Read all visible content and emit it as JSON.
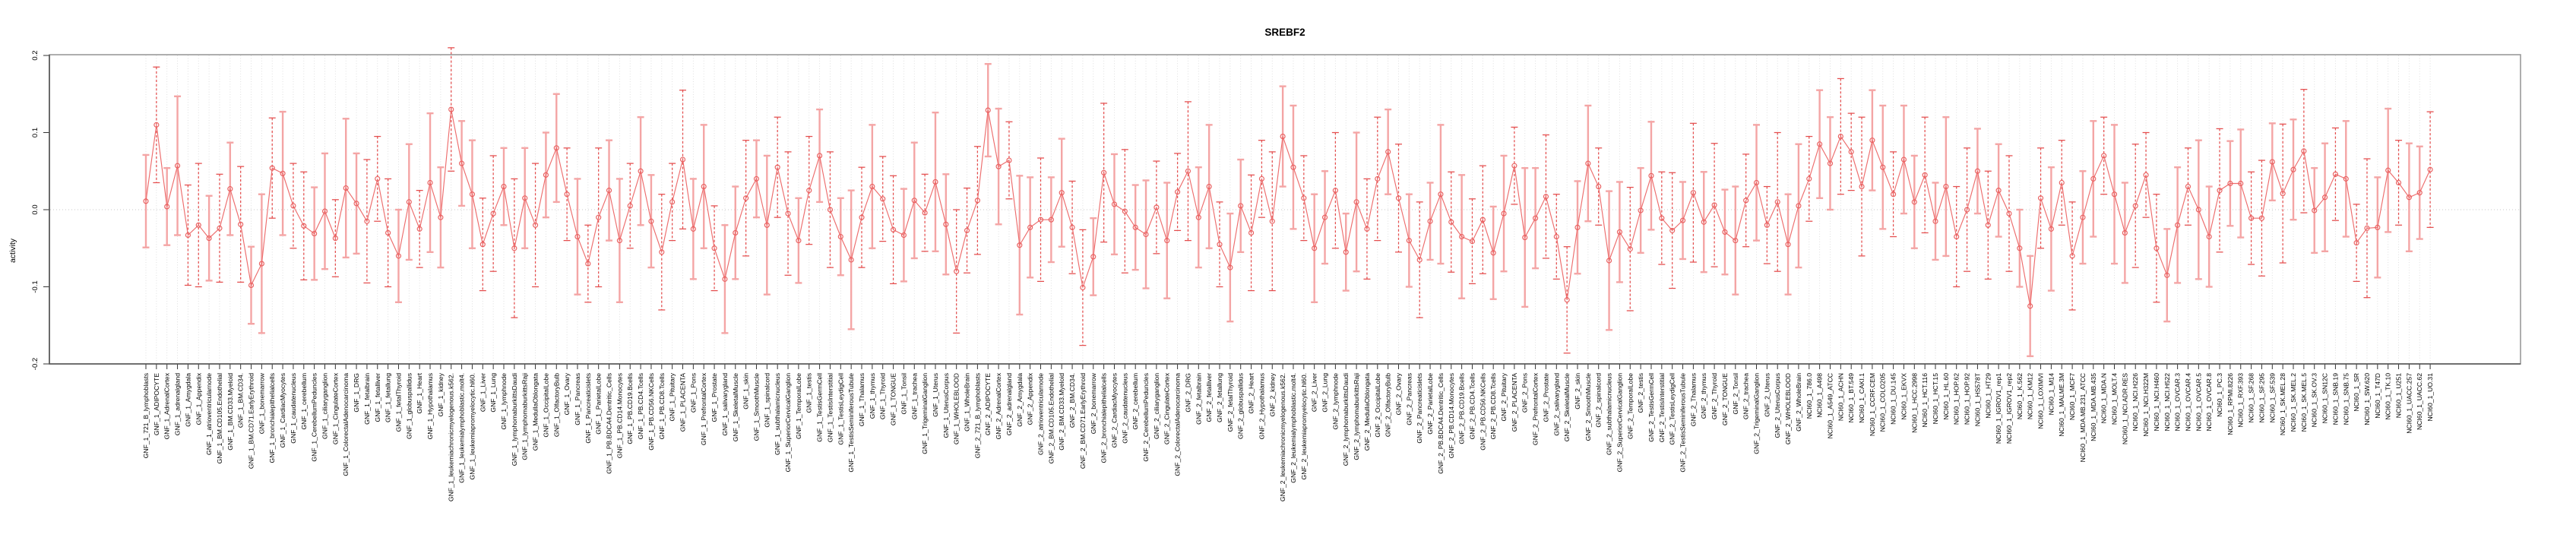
{
  "chart_data": {
    "type": "line",
    "error_bars": true,
    "title": "SREBF2",
    "xlabel": "",
    "ylabel": "activity",
    "ylim": [
      -0.2,
      0.2
    ],
    "ytick_labels": [
      "0.2",
      "0.1",
      "0.0",
      "-0.1",
      "-0.2"
    ],
    "ytick_values": [
      0.2,
      0.1,
      0.0,
      -0.1,
      -0.2
    ],
    "grid": "vertical dotted gridline at every category; dotted horizontal line at 0",
    "legend_position": "none",
    "colors": {
      "point": "#e96060",
      "line": "#ed6d6d",
      "errorbar_light": "#f4a5a5",
      "errorbar_dark": "#e44d4d",
      "grid": "#dcdcdc",
      "frame": "#9a9a9a"
    },
    "categories": [
      "GNF_1_721_B_lymphoblasts",
      "GNF_1_ADIPOCYTE",
      "GNF_1_AdrenalCortex",
      "GNF_1_adrenalgland",
      "GNF_1_Amygdala",
      "GNF_1_Appendix",
      "GNF_1_atrioventricularnode",
      "GNF_1_BM.CD105.Endothelial",
      "GNF_1_BM.CD33.Myeloid",
      "GNF_1_BM.CD34.",
      "GNF_1_BM.CD71.EarlyErythroid",
      "GNF_1_bonemarrow",
      "GNF_1_bronchialepithelialcells",
      "GNF_1_CardiacMyocytes",
      "GNF_1_caudatenucleus",
      "GNF_1_cerebellum",
      "GNF_1_CerebellumPeduncles",
      "GNF_1_ciliaryganglion",
      "GNF_1_CingulateCortex",
      "GNF_1_ColorectalAdenocarcinoma",
      "GNF_1_DRG",
      "GNF_1_fetalbrain",
      "GNF_1_fetalliver",
      "GNF_1_fetallung",
      "GNF_1_fetalThyroid",
      "GNF_1_globuspallidus",
      "GNF_1_Heart",
      "GNF_1_Hypothalamus",
      "GNF_1_kidney",
      "GNF_1_leukemiachronicmyelogenous.k562.",
      "GNF_1_leukemialymphoblastic.molt4.",
      "GNF_1_leukemiapromyelocytic.hl60.",
      "GNF_1_Liver",
      "GNF_1_Lung",
      "GNF_1_lymphnode",
      "GNF_1_lymphomaburkittsDaudi",
      "GNF_1_lymphomaburkittsRaji",
      "GNF_1_MedullaOblongata",
      "GNF_1_OccipitalLobe",
      "GNF_1_OlfactoryBulb",
      "GNF_1_Ovary",
      "GNF_1_Pancreas",
      "GNF_1_Pancreaticislets",
      "GNF_1_ParietalLobe",
      "GNF_1_PB.BDCA4.Dentritic_Cells",
      "GNF_1_PB.CD14.Monocytes",
      "GNF_1_PB.CD19.Bcells",
      "GNF_1_PB.CD4.Tcells",
      "GNF_1_PB.CD56.NKCells",
      "GNF_1_PB.CD8.Tcells",
      "GNF_1_Pituitary",
      "GNF_1_PLACENTA",
      "GNF_1_Pons",
      "GNF_1_PrefrontalCortex",
      "GNF_1_Prostate",
      "GNF_1_salivarygland",
      "GNF_1_SkeletalMuscle",
      "GNF_1_skin",
      "GNF_1_SmoothMuscle",
      "GNF_1_spinalcord",
      "GNF_1_subthalamicnucleus",
      "GNF_1_SuperiorCervicalGanglion",
      "GNF_1_TemporalLobe",
      "GNF_1_testis",
      "GNF_1_TestisGermCell",
      "GNF_1_TestisInterstitial",
      "GNF_1_TestisLeydigCell",
      "GNF_1_TestisSeminiferousTubule",
      "GNF_1_Thalamus",
      "GNF_1_thymus",
      "GNF_1_Thyroid",
      "GNF_1_TONGUE",
      "GNF_1_Tonsil",
      "GNF_1_trachea",
      "GNF_1_TrigeminalGanglion",
      "GNF_1_Uterus",
      "GNF_1_UterusCorpus",
      "GNF_1_WHOLEBLOOD",
      "GNF_1_WholeBrain",
      "GNF_2_721_B_lymphoblasts",
      "GNF_2_ADIPOCYTE",
      "GNF_2_AdrenalCortex",
      "GNF_2_adrenalgland",
      "GNF_2_Amygdala",
      "GNF_2_Appendix",
      "GNF_2_atrioventricularnode",
      "GNF_2_BM.CD105.Endothelial",
      "GNF_2_BM.CD33.Myeloid",
      "GNF_2_BM.CD34.",
      "GNF_2_BM.CD71.EarlyErythroid",
      "GNF_2_bonemarrow",
      "GNF_2_bronchialepithelialcells",
      "GNF_2_CardiacMyocytes",
      "GNF_2_caudatenucleus",
      "GNF_2_cerebellum",
      "GNF_2_CerebellumPeduncles",
      "GNF_2_ciliaryganglion",
      "GNF_2_CingulateCortex",
      "GNF_2_ColorectalAdenocarcinoma",
      "GNF_2_DRG",
      "GNF_2_fetalbrain",
      "GNF_2_fetalliver",
      "GNF_2_fetallung",
      "GNF_2_fetalThyroid",
      "GNF_2_globuspallidus",
      "GNF_2_Heart",
      "GNF_2_Hypothalamus",
      "GNF_2_kidney",
      "GNF_2_leukemiachronicmyelogenous.k562.",
      "GNF_2_leukemialymphoblastic.molt4.",
      "GNF_2_leukemiapromyelocytic.hl60.",
      "GNF_2_Liver",
      "GNF_2_Lung",
      "GNF_2_lymphnode",
      "GNF_2_lymphomaburkittsDaudi",
      "GNF_2_lymphomaburkittsRaji",
      "GNF_2_MedullaOblongata",
      "GNF_2_OccipitalLobe",
      "GNF_2_OlfactoryBulb",
      "GNF_2_Ovary",
      "GNF_2_Pancreas",
      "GNF_2_Pancreaticislets",
      "GNF_2_ParietalLobe",
      "GNF_2_PB.BDCA4.Dentritic_Cells",
      "GNF_2_PB.CD14.Monocytes",
      "GNF_2_PB.CD19.Bcells",
      "GNF_2_PB.CD4.Tcells",
      "GNF_2_PB.CD56.NKCells",
      "GNF_2_PB.CD8.Tcells",
      "GNF_2_Pituitary",
      "GNF_2_PLACENTA",
      "GNF_2_Pons",
      "GNF_2_PrefrontalCortex",
      "GNF_2_Prostate",
      "GNF_2_salivarygland",
      "GNF_2_SkeletalMuscle",
      "GNF_2_skin",
      "GNF_2_SmoothMuscle",
      "GNF_2_spinalcord",
      "GNF_2_subthalamicnucleus",
      "GNF_2_SuperiorCervicalGanglion",
      "GNF_2_TemporalLobe",
      "GNF_2_testis",
      "GNF_2_TestisGermCell",
      "GNF_2_TestisInterstitial",
      "GNF_2_TestisLeydigCell",
      "GNF_2_TestisSeminiferousTubule",
      "GNF_2_Thalamus",
      "GNF_2_thymus",
      "GNF_2_Thyroid",
      "GNF_2_TONGUE",
      "GNF_2_Tonsil",
      "GNF_2_trachea",
      "GNF_2_TrigeminalGanglion",
      "GNF_2_Uterus",
      "GNF_2_UterusCorpus",
      "GNF_2_WHOLEBLOOD",
      "GNF_2_WholeBrain",
      "NCI60_1_786.0",
      "NCI60_1_A498",
      "NCI60_1_A549_ATCC",
      "NCI60_1_ACHN",
      "NCI60_1_BT.549",
      "NCI60_1_CAKI.1",
      "NCI60_1_CCRF.CEM",
      "NCI60_1_COLO205",
      "NCI60_1_DU.145",
      "NCI60_1_EKVX",
      "NCI60_1_HCC.2998",
      "NCI60_1_HCT.116",
      "NCI60_1_HCT.15",
      "NCI60_1_HL.60",
      "NCI60_1_HOP.62",
      "NCI60_1_HOP.92",
      "NCI60_1_HS578T",
      "NCI60_1_HT29",
      "NCI60_1_IGROV1_rep1",
      "NCI60_1_IGROV1_rep2",
      "NCI60_1_K.562",
      "NCI60_1_KM12",
      "NCI60_1_LOXIMVI",
      "NCI60_1_M14",
      "NCI60_1_MALME.3M",
      "NCI60_1_MCF7",
      "NCI60_1_MDA.MB.231_ATCC",
      "NCI60_1_MDA.MB.435",
      "NCI60_1_MDA.N",
      "NCI60_1_MOLT.4",
      "NCI60_1_NCI.ADR.RES",
      "NCI60_1_NCI.H226",
      "NCI60_1_NCI.H322M",
      "NCI60_1_NCI.H460",
      "NCI60_1_NCI.H522",
      "NCI60_1_OVCAR.3",
      "NCI60_1_OVCAR.4",
      "NCI60_1_OVCAR.5",
      "NCI60_1_OVCAR.8",
      "NCI60_1_PC.3",
      "NCI60_1_RPMI.8226",
      "NCI60_1_RXF.393",
      "NCI60_1_SF.268",
      "NCI60_1_SF.295",
      "NCI60_1_SF.539",
      "NCI60_1_SK.MEL.28",
      "NCI60_1_SK.MEL.2",
      "NCI60_1_SK.MEL.5",
      "NCI60_1_SK.OV.3",
      "NCI60_1_SN12C",
      "NCI60_1_SNB.19",
      "NCI60_1_SNB.75",
      "NCI60_1_SR",
      "NCI60_1_SW.620",
      "NCI60_1_T47D",
      "NCI60_1_TK.10",
      "NCI60_1_U251",
      "NCI60_1_UACC.257",
      "NCI60_1_UACC.62",
      "NCI60_1_UO.31"
    ],
    "values": [
      0.011,
      0.11,
      0.004,
      0.057,
      -0.033,
      -0.02,
      -0.037,
      -0.024,
      0.027,
      -0.019,
      -0.098,
      -0.07,
      0.054,
      0.047,
      0.005,
      -0.021,
      -0.031,
      -0.002,
      -0.037,
      0.028,
      0.008,
      -0.015,
      0.04,
      -0.03,
      -0.06,
      0.01,
      -0.025,
      0.035,
      -0.01,
      0.13,
      0.06,
      0.02,
      -0.045,
      -0.005,
      0.03,
      -0.05,
      0.015,
      -0.02,
      0.045,
      0.08,
      0.02,
      -0.035,
      -0.07,
      -0.01,
      0.025,
      -0.04,
      0.005,
      0.05,
      -0.015,
      -0.055,
      0.01,
      0.065,
      -0.025,
      0.03,
      -0.05,
      -0.09,
      -0.03,
      0.015,
      0.04,
      -0.02,
      0.055,
      -0.005,
      -0.04,
      0.025,
      0.07,
      0.0,
      -0.035,
      -0.065,
      -0.01,
      0.03,
      0.014,
      -0.026,
      -0.033,
      0.012,
      -0.004,
      0.036,
      -0.019,
      -0.08,
      -0.027,
      0.012,
      0.129,
      0.056,
      0.064,
      -0.046,
      -0.023,
      -0.013,
      -0.013,
      0.022,
      -0.023,
      -0.101,
      -0.061,
      0.048,
      0.007,
      -0.002,
      -0.023,
      -0.032,
      0.003,
      -0.04,
      0.023,
      0.05,
      -0.01,
      0.03,
      -0.045,
      -0.075,
      0.005,
      -0.03,
      0.04,
      -0.015,
      0.095,
      0.055,
      0.015,
      -0.05,
      -0.01,
      0.025,
      -0.055,
      0.01,
      -0.025,
      0.04,
      0.075,
      0.015,
      -0.04,
      -0.065,
      -0.015,
      0.02,
      -0.016,
      -0.035,
      -0.041,
      -0.013,
      -0.056,
      -0.005,
      0.057,
      -0.036,
      -0.011,
      0.017,
      -0.035,
      -0.117,
      -0.023,
      0.06,
      0.03,
      -0.066,
      -0.029,
      -0.051,
      -0.001,
      0.044,
      -0.011,
      -0.027,
      -0.014,
      0.022,
      -0.016,
      0.006,
      -0.029,
      -0.04,
      0.012,
      0.035,
      -0.02,
      0.01,
      -0.045,
      0.005,
      0.04,
      0.085,
      0.06,
      0.095,
      0.075,
      0.03,
      0.09,
      0.055,
      0.02,
      0.065,
      0.01,
      0.045,
      -0.015,
      0.03,
      -0.035,
      0.0,
      0.05,
      -0.02,
      0.025,
      -0.005,
      -0.05,
      -0.125,
      0.015,
      -0.025,
      0.035,
      -0.06,
      -0.01,
      0.04,
      0.07,
      0.02,
      -0.03,
      0.005,
      0.045,
      -0.05,
      -0.085,
      -0.02,
      0.03,
      0.0,
      -0.035,
      0.025,
      0.034,
      0.034,
      -0.011,
      -0.011,
      0.062,
      0.021,
      0.052,
      0.076,
      -0.001,
      0.016,
      0.046,
      0.04,
      -0.043,
      -0.024,
      -0.023,
      0.051,
      0.035,
      0.016,
      0.022,
      0.052
    ],
    "errors": [
      0.06,
      0.075,
      0.05,
      0.09,
      0.065,
      0.08,
      0.055,
      0.07,
      0.06,
      0.075,
      0.05,
      0.09,
      0.065,
      0.08,
      0.055,
      0.07,
      0.06,
      0.075,
      0.05,
      0.09,
      0.065,
      0.08,
      0.055,
      0.07,
      0.06,
      0.075,
      0.05,
      0.09,
      0.065,
      0.08,
      0.055,
      0.07,
      0.06,
      0.075,
      0.05,
      0.09,
      0.065,
      0.08,
      0.055,
      0.07,
      0.06,
      0.075,
      0.05,
      0.09,
      0.065,
      0.08,
      0.055,
      0.07,
      0.06,
      0.075,
      0.05,
      0.09,
      0.065,
      0.08,
      0.055,
      0.07,
      0.06,
      0.075,
      0.05,
      0.09,
      0.065,
      0.08,
      0.055,
      0.07,
      0.06,
      0.075,
      0.05,
      0.09,
      0.065,
      0.08,
      0.055,
      0.07,
      0.06,
      0.075,
      0.05,
      0.09,
      0.065,
      0.08,
      0.055,
      0.07,
      0.06,
      0.075,
      0.05,
      0.09,
      0.065,
      0.08,
      0.055,
      0.07,
      0.06,
      0.075,
      0.05,
      0.09,
      0.065,
      0.08,
      0.055,
      0.07,
      0.06,
      0.075,
      0.05,
      0.09,
      0.065,
      0.08,
      0.055,
      0.07,
      0.06,
      0.075,
      0.05,
      0.09,
      0.065,
      0.08,
      0.055,
      0.07,
      0.06,
      0.075,
      0.05,
      0.09,
      0.065,
      0.08,
      0.055,
      0.07,
      0.06,
      0.075,
      0.05,
      0.09,
      0.065,
      0.08,
      0.055,
      0.07,
      0.06,
      0.075,
      0.05,
      0.09,
      0.065,
      0.08,
      0.055,
      0.069,
      0.06,
      0.075,
      0.05,
      0.09,
      0.065,
      0.08,
      0.055,
      0.07,
      0.06,
      0.075,
      0.05,
      0.09,
      0.065,
      0.08,
      0.055,
      0.07,
      0.06,
      0.075,
      0.05,
      0.09,
      0.065,
      0.08,
      0.055,
      0.07,
      0.06,
      0.075,
      0.05,
      0.09,
      0.065,
      0.08,
      0.055,
      0.07,
      0.06,
      0.075,
      0.05,
      0.09,
      0.065,
      0.08,
      0.055,
      0.07,
      0.06,
      0.075,
      0.05,
      0.065,
      0.065,
      0.08,
      0.055,
      0.07,
      0.06,
      0.075,
      0.05,
      0.09,
      0.065,
      0.08,
      0.055,
      0.07,
      0.06,
      0.075,
      0.05,
      0.09,
      0.065,
      0.08,
      0.055,
      0.07,
      0.06,
      0.075,
      0.05,
      0.09,
      0.065,
      0.08,
      0.055,
      0.07,
      0.06,
      0.075,
      0.05,
      0.09,
      0.065,
      0.08,
      0.055,
      0.07,
      0.06,
      0.075
    ],
    "bar_styles": "sdssddsdsdssdsddssdssdddssdssdssddsdsdssdsddssdssdddssdssdssddsdsdssdsddssdssdddssdssdssddsdsdssdsddssdssdddssdssdssddsdsdssdsddssdssdddssdssdssddsdsdssdsddssdssdddssdssdssddsdsdssdsddssdssdddssdssdssddsdsdssdsddssdssd"
  }
}
